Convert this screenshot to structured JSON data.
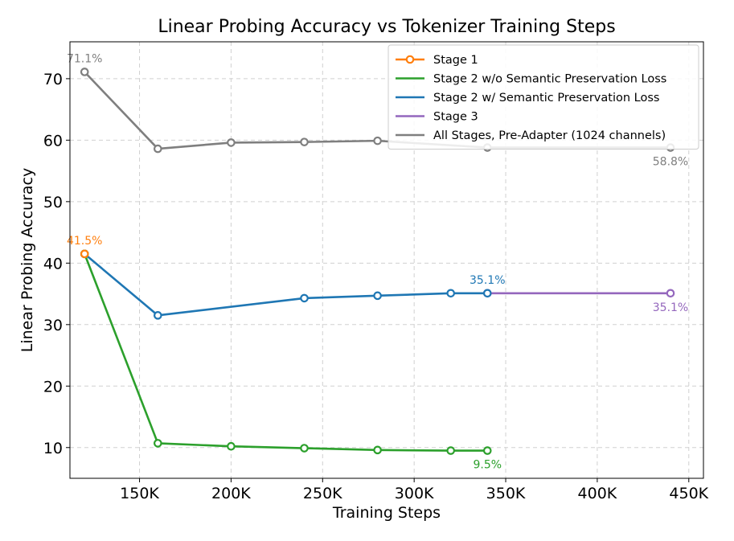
{
  "chart_data": {
    "type": "line",
    "title": "Linear Probing Accuracy vs Tokenizer Training Steps",
    "xlabel": "Training Steps",
    "ylabel": "Linear Probing Accuracy",
    "xlim": [
      112000,
      458000
    ],
    "ylim": [
      5,
      76
    ],
    "grid": true,
    "legend_position": "top-right",
    "x_ticks": [
      {
        "value": 150000,
        "label": "150K"
      },
      {
        "value": 200000,
        "label": "200K"
      },
      {
        "value": 250000,
        "label": "250K"
      },
      {
        "value": 300000,
        "label": "300K"
      },
      {
        "value": 350000,
        "label": "350K"
      },
      {
        "value": 400000,
        "label": "400K"
      },
      {
        "value": 450000,
        "label": "450K"
      }
    ],
    "y_ticks": [
      {
        "value": 10,
        "label": "10"
      },
      {
        "value": 20,
        "label": "20"
      },
      {
        "value": 30,
        "label": "30"
      },
      {
        "value": 40,
        "label": "40"
      },
      {
        "value": 50,
        "label": "50"
      },
      {
        "value": 60,
        "label": "60"
      },
      {
        "value": 70,
        "label": "70"
      }
    ],
    "series": [
      {
        "name": "Stage 1",
        "color": "#ff7f0e",
        "x": [
          120000
        ],
        "y": [
          41.5
        ]
      },
      {
        "name": "Stage 2 w/o Semantic Preservation Loss",
        "color": "#2ca02c",
        "x": [
          120000,
          160000,
          200000,
          240000,
          280000,
          320000,
          340000
        ],
        "y": [
          41.5,
          10.7,
          10.2,
          9.9,
          9.6,
          9.5,
          9.5
        ]
      },
      {
        "name": "Stage 2 w/ Semantic Preservation Loss",
        "color": "#1f77b4",
        "x": [
          120000,
          160000,
          240000,
          280000,
          320000,
          340000
        ],
        "y": [
          41.5,
          31.5,
          34.3,
          34.7,
          35.1,
          35.1
        ]
      },
      {
        "name": "Stage 3",
        "color": "#9467bd",
        "x": [
          340000,
          440000
        ],
        "y": [
          35.1,
          35.1
        ]
      },
      {
        "name": "All Stages, Pre-Adapter (1024 channels)",
        "color": "#7f7f7f",
        "x": [
          120000,
          160000,
          200000,
          240000,
          280000,
          340000,
          440000
        ],
        "y": [
          71.1,
          58.6,
          59.6,
          59.7,
          59.9,
          58.8,
          58.8
        ]
      }
    ],
    "annotations": [
      {
        "text": "71.1%",
        "x": 120000,
        "y": 71.1,
        "color": "#7f7f7f",
        "placement": "above"
      },
      {
        "text": "58.8%",
        "x": 440000,
        "y": 58.8,
        "color": "#7f7f7f",
        "placement": "below"
      },
      {
        "text": "41.5%",
        "x": 120000,
        "y": 41.5,
        "color": "#ff7f0e",
        "placement": "above"
      },
      {
        "text": "35.1%",
        "x": 340000,
        "y": 35.1,
        "color": "#1f77b4",
        "placement": "above"
      },
      {
        "text": "35.1%",
        "x": 440000,
        "y": 35.1,
        "color": "#9467bd",
        "placement": "below"
      },
      {
        "text": "9.5%",
        "x": 340000,
        "y": 9.5,
        "color": "#2ca02c",
        "placement": "below"
      }
    ]
  }
}
